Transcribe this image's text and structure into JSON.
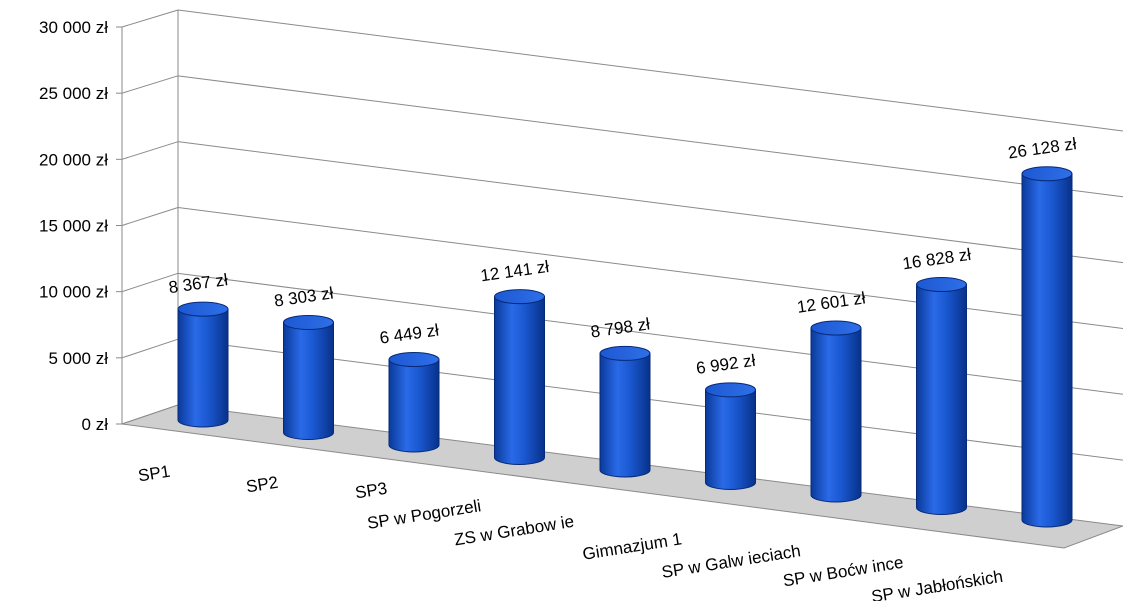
{
  "chart_data": {
    "type": "bar",
    "style": "3d-cylinder",
    "categories": [
      "SP1",
      "SP2",
      "SP3",
      "SP w  Pogorzeli",
      "ZS w  Grabow ie",
      "Gimnazjum 1",
      "SP w  Galw ieciach",
      "SP w  Boćw ince",
      "SP w  Jabłońskich"
    ],
    "values": [
      8367,
      8303,
      6449,
      12141,
      8798,
      6992,
      12601,
      16828,
      26128
    ],
    "value_labels": [
      "8 367 zł",
      "8 303 zł",
      "6 449 zł",
      "12 141 zł",
      "8 798 zł",
      "6 992 zł",
      "12 601 zł",
      "16 828 zł",
      "26 128 zł"
    ],
    "y_ticks": [
      "0 zł",
      "5 000 zł",
      "10 000 zł",
      "15 000 zł",
      "20 000 zł",
      "25 000 zł",
      "30 000 zł"
    ],
    "ylim": [
      0,
      30000
    ],
    "grid": true,
    "legend": "none",
    "bar_color": "#1552c8",
    "floor_color": "#cfcfcf"
  }
}
